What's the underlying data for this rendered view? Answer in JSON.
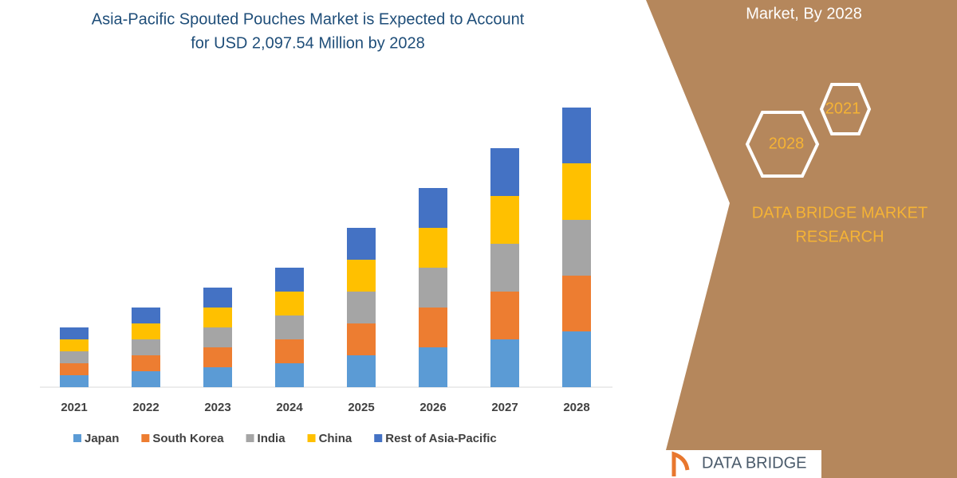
{
  "chart_data": {
    "type": "stacked-bar",
    "title": [
      "Asia-Pacific Spouted Pouches Market is Expected to Account",
      "for USD 2,097.54 Million by 2028"
    ],
    "categories": [
      "2021",
      "2022",
      "2023",
      "2024",
      "2025",
      "2026",
      "2027",
      "2028"
    ],
    "series": [
      {
        "name": "Japan",
        "color": "#5b9bd5",
        "values": [
          15,
          20,
          25,
          30,
          40,
          50,
          60,
          70
        ]
      },
      {
        "name": "South Korea",
        "color": "#ed7d31",
        "values": [
          15,
          20,
          25,
          30,
          40,
          50,
          60,
          70
        ]
      },
      {
        "name": "India",
        "color": "#a5a5a5",
        "values": [
          15,
          20,
          25,
          30,
          40,
          50,
          60,
          70
        ]
      },
      {
        "name": "China",
        "color": "#ffc000",
        "values": [
          15,
          20,
          25,
          30,
          40,
          50,
          60,
          71
        ]
      },
      {
        "name": "Rest of Asia-Pacific",
        "color": "#4472c4",
        "values": [
          15,
          20,
          25,
          30,
          40,
          50,
          60,
          70
        ]
      }
    ],
    "ylim": [
      0,
      360
    ]
  },
  "side_panel": {
    "heading": "Market, By 2028",
    "badges": [
      "2021",
      "2028"
    ],
    "brand": [
      "DATA BRIDGE MARKET",
      "RESEARCH"
    ],
    "logo": "DATA BRIDGE"
  }
}
